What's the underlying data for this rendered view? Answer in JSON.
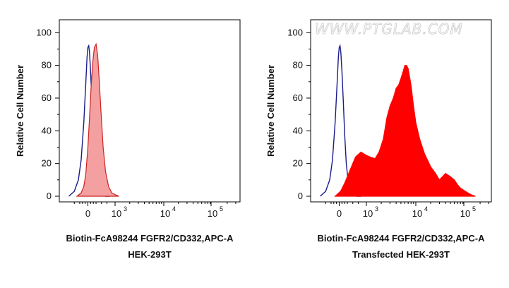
{
  "watermark": "WWW.PTGLAB.COM",
  "colors": {
    "control": "#1a1a8c",
    "left_fill": "#f4a0a0",
    "left_stroke": "#cc2222",
    "right_fill": "#ff0000",
    "axis": "#000000"
  },
  "chart_data": [
    {
      "type": "area",
      "xlabel": "Biotin-FcA98244 FGFR2/CD332,APC-A",
      "subtitle": "HEK-293T",
      "ylabel": "Relative Cell Number",
      "y_ticks": [
        0,
        20,
        40,
        60,
        80,
        100
      ],
      "ylim": [
        0,
        104
      ],
      "x_scale": "biexponential",
      "x_ticks": [
        {
          "base": "0",
          "exp": ""
        },
        {
          "base": "10",
          "exp": "3"
        },
        {
          "base": "10",
          "exp": "4"
        },
        {
          "base": "10",
          "exp": "5"
        }
      ],
      "series": [
        {
          "role": "control",
          "style": "line",
          "x": [
            -700,
            -500,
            -350,
            -250,
            -150,
            -80,
            -30,
            0,
            30,
            60,
            100,
            150,
            200,
            260,
            330,
            420,
            520,
            650,
            800
          ],
          "y": [
            0,
            3,
            10,
            22,
            45,
            68,
            85,
            91,
            92,
            88,
            76,
            58,
            38,
            20,
            9,
            3,
            1,
            0,
            0
          ]
        },
        {
          "role": "stained",
          "style": "fill",
          "x": [
            -400,
            -250,
            -150,
            -80,
            0,
            60,
            120,
            180,
            240,
            300,
            360,
            420,
            480,
            560,
            650,
            760,
            880,
            1000,
            1200
          ],
          "y": [
            0,
            2,
            6,
            13,
            30,
            48,
            67,
            82,
            91,
            93,
            86,
            70,
            52,
            30,
            15,
            6,
            2,
            1,
            0
          ]
        }
      ]
    },
    {
      "type": "area",
      "xlabel": "Biotin-FcA98244 FGFR2/CD332,APC-A",
      "subtitle": "Transfected HEK-293T",
      "ylabel": "Relative Cell Number",
      "y_ticks": [
        0,
        20,
        40,
        60,
        80,
        100
      ],
      "ylim": [
        0,
        104
      ],
      "x_scale": "biexponential",
      "x_ticks": [
        {
          "base": "0",
          "exp": ""
        },
        {
          "base": "10",
          "exp": "3"
        },
        {
          "base": "10",
          "exp": "4"
        },
        {
          "base": "10",
          "exp": "5"
        }
      ],
      "series": [
        {
          "role": "control",
          "style": "line",
          "x": [
            -700,
            -500,
            -350,
            -250,
            -150,
            -80,
            -30,
            0,
            30,
            60,
            100,
            150,
            200,
            260,
            330,
            420,
            520,
            650,
            800
          ],
          "y": [
            0,
            3,
            10,
            22,
            45,
            68,
            85,
            91,
            92,
            88,
            76,
            58,
            38,
            20,
            9,
            3,
            1,
            0,
            0
          ]
        },
        {
          "role": "stained",
          "style": "fill",
          "x": [
            -150,
            50,
            200,
            400,
            600,
            800,
            1000,
            1200,
            1500,
            1800,
            2200,
            2600,
            3000,
            3500,
            4000,
            4500,
            5000,
            5500,
            6000,
            6500,
            7000,
            8000,
            9000,
            10000,
            12000,
            15000,
            20000,
            25000,
            30000,
            40000,
            50000,
            60000,
            70000,
            80000,
            100000,
            130000,
            160000
          ],
          "y": [
            0,
            3,
            8,
            16,
            24,
            27,
            25,
            24,
            23,
            27,
            35,
            48,
            55,
            60,
            66,
            68,
            72,
            76,
            80,
            80,
            78,
            68,
            55,
            45,
            35,
            26,
            18,
            14,
            10,
            14,
            12,
            10,
            7,
            5,
            3,
            1,
            0
          ]
        }
      ]
    }
  ]
}
